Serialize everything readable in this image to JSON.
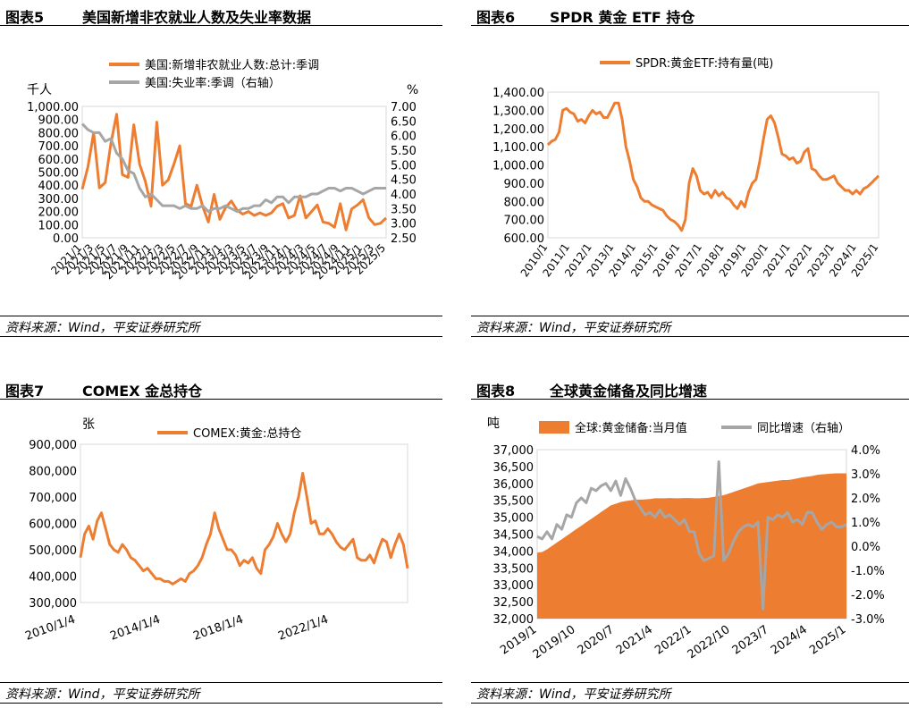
{
  "panels": [
    {
      "number": "图表5",
      "title": "美国新增非农就业人数及失业率数据",
      "source": "资料来源：Wind，平安证券研究所"
    },
    {
      "number": "图表6",
      "title": "SPDR 黄金 ETF 持仓",
      "source": "资料来源：Wind，平安证券研究所"
    },
    {
      "number": "图表7",
      "title": "COMEX 金总持仓",
      "source": "资料来源：Wind，平安证券研究所"
    },
    {
      "number": "图表8",
      "title": "全球黄金储备及同比增速",
      "source": "资料来源：Wind，平安证券研究所"
    }
  ],
  "chart_data": [
    {
      "type": "line",
      "colors": {
        "primary": "#ed7d31",
        "secondary": "#a6a6a6"
      },
      "y_unit": "千人",
      "y2_unit": "%",
      "ylim": [
        0,
        1000
      ],
      "y2lim": [
        2.5,
        7.0
      ],
      "y_ticks": [
        "0.00",
        "100.00",
        "200.00",
        "300.00",
        "400.00",
        "500.00",
        "600.00",
        "700.00",
        "800.00",
        "900.00",
        "1,000.00"
      ],
      "y2_ticks": [
        "2.50",
        "3.00",
        "3.50",
        "4.00",
        "4.50",
        "5.00",
        "5.50",
        "6.00",
        "6.50",
        "7.00"
      ],
      "x_ticks": [
        "2021/1",
        "2021/3",
        "2021/5",
        "2021/7",
        "2021/9",
        "2021/11",
        "2022/1",
        "2022/3",
        "2022/5",
        "2022/7",
        "2022/9",
        "2022/11",
        "2023/1",
        "2023/3",
        "2023/5",
        "2023/7",
        "2023/9",
        "2023/11",
        "2024/1",
        "2024/3",
        "2024/5",
        "2024/7",
        "2024/9",
        "2024/11",
        "2025/1",
        "2025/3",
        "2025/5"
      ],
      "legend": "top",
      "series": [
        {
          "name": "美国:新增非农就业人数:总计:季调",
          "axis": "left",
          "values": [
            370,
            540,
            800,
            380,
            420,
            720,
            940,
            480,
            460,
            860,
            560,
            430,
            240,
            880,
            400,
            440,
            560,
            700,
            260,
            240,
            400,
            240,
            120,
            330,
            140,
            230,
            280,
            210,
            180,
            200,
            170,
            190,
            170,
            190,
            240,
            260,
            150,
            170,
            320,
            150,
            200,
            250,
            120,
            110,
            80,
            260,
            60,
            220,
            250,
            290,
            150,
            100,
            110,
            150
          ]
        },
        {
          "name": "美国:失业率:季调（右轴）",
          "axis": "right",
          "values": [
            6.4,
            6.2,
            6.1,
            6.1,
            5.8,
            5.9,
            5.4,
            5.2,
            4.8,
            4.7,
            4.2,
            3.9,
            4.0,
            3.8,
            3.6,
            3.6,
            3.6,
            3.5,
            3.6,
            3.5,
            3.5,
            3.6,
            3.4,
            3.5,
            3.5,
            3.6,
            3.5,
            3.4,
            3.5,
            3.5,
            3.6,
            3.6,
            3.8,
            3.7,
            3.9,
            3.9,
            3.7,
            3.9,
            3.9,
            3.9,
            4.0,
            4.0,
            4.1,
            4.2,
            4.2,
            4.1,
            4.2,
            4.2,
            4.1,
            4.0,
            4.1,
            4.2,
            4.2,
            4.2
          ]
        }
      ]
    },
    {
      "type": "line",
      "colors": {
        "primary": "#ed7d31"
      },
      "ylim": [
        600,
        1400
      ],
      "y_ticks": [
        "600.00",
        "700.00",
        "800.00",
        "900.00",
        "1,000.00",
        "1,100.00",
        "1,200.00",
        "1,300.00",
        "1,400.00"
      ],
      "x_ticks": [
        "2010/1",
        "2011/1",
        "2012/1",
        "2013/1",
        "2014/1",
        "2015/1",
        "2016/1",
        "2017/1",
        "2018/1",
        "2019/1",
        "2020/1",
        "2021/1",
        "2022/1",
        "2023/1",
        "2024/1",
        "2025/1"
      ],
      "legend": "top",
      "series": [
        {
          "name": "SPDR:黄金ETF:持有量(吨)",
          "values": [
            1110,
            1130,
            1140,
            1180,
            1300,
            1310,
            1290,
            1280,
            1240,
            1250,
            1230,
            1270,
            1300,
            1280,
            1290,
            1260,
            1260,
            1300,
            1340,
            1340,
            1250,
            1100,
            1020,
            920,
            880,
            820,
            800,
            800,
            780,
            770,
            760,
            750,
            720,
            700,
            690,
            670,
            640,
            700,
            900,
            980,
            940,
            860,
            840,
            850,
            820,
            860,
            830,
            850,
            820,
            810,
            780,
            760,
            800,
            770,
            850,
            900,
            920,
            1020,
            1140,
            1250,
            1270,
            1230,
            1150,
            1060,
            1050,
            1030,
            1040,
            1010,
            1020,
            1070,
            1090,
            980,
            970,
            940,
            920,
            920,
            930,
            940,
            900,
            880,
            860,
            860,
            840,
            860,
            840,
            870,
            880,
            900,
            920,
            940
          ]
        }
      ]
    },
    {
      "type": "line",
      "colors": {
        "primary": "#ed7d31"
      },
      "y_unit": "张",
      "ylim": [
        300000,
        900000
      ],
      "y_ticks": [
        "300,000",
        "400,000",
        "500,000",
        "600,000",
        "700,000",
        "800,000",
        "900,000"
      ],
      "x_ticks": [
        "2010/1/4",
        "2014/1/4",
        "2018/1/4",
        "2022/1/4"
      ],
      "legend": "top",
      "series": [
        {
          "name": "COMEX:黄金:总持仓",
          "values": [
            470,
            560,
            590,
            540,
            610,
            640,
            580,
            520,
            500,
            490,
            520,
            500,
            470,
            460,
            440,
            420,
            430,
            410,
            390,
            390,
            380,
            380,
            370,
            380,
            390,
            380,
            410,
            420,
            440,
            470,
            520,
            560,
            640,
            580,
            540,
            500,
            500,
            480,
            440,
            460,
            450,
            470,
            430,
            410,
            500,
            520,
            550,
            600,
            560,
            530,
            560,
            640,
            700,
            790,
            700,
            600,
            610,
            560,
            560,
            580,
            560,
            530,
            510,
            500,
            520,
            540,
            470,
            460,
            460,
            480,
            450,
            500,
            540,
            530,
            470,
            520,
            560,
            520,
            430
          ]
        }
      ]
    },
    {
      "type": "area",
      "colors": {
        "primary": "#ed7d31",
        "secondary": "#a6a6a6"
      },
      "y_unit": "吨",
      "ylim": [
        32000,
        37000
      ],
      "y2lim": [
        -3.0,
        4.0
      ],
      "y_ticks": [
        "32,000",
        "32,500",
        "33,000",
        "33,500",
        "34,000",
        "34,500",
        "35,000",
        "35,500",
        "36,000",
        "36,500",
        "37,000"
      ],
      "y2_ticks": [
        "-3.0%",
        "-2.0%",
        "-1.0%",
        "0.0%",
        "1.0%",
        "2.0%",
        "3.0%",
        "4.0%"
      ],
      "x_ticks": [
        "2019/1",
        "2019/10",
        "2020/7",
        "2021/4",
        "2022/1",
        "2022/10",
        "2023/7",
        "2024/4",
        "2025/1"
      ],
      "legend": "top",
      "series": [
        {
          "name": "全球:黄金储备:当月值",
          "axis": "left",
          "values": [
            33950,
            33970,
            34050,
            34150,
            34250,
            34350,
            34450,
            34550,
            34650,
            34750,
            34850,
            34950,
            35050,
            35150,
            35250,
            35350,
            35400,
            35450,
            35480,
            35500,
            35520,
            35520,
            35530,
            35540,
            35560,
            35560,
            35560,
            35570,
            35560,
            35560,
            35570,
            35570,
            35560,
            35560,
            35570,
            35580,
            35600,
            35630,
            35650,
            35700,
            35750,
            35800,
            35850,
            35900,
            35950,
            36000,
            36020,
            36040,
            36060,
            36080,
            36100,
            36100,
            36120,
            36150,
            36180,
            36200,
            36220,
            36250,
            36270,
            36280,
            36290,
            36300,
            36300,
            36300
          ]
        },
        {
          "name": "同比增速（右轴）",
          "axis": "right",
          "values": [
            0.4,
            0.3,
            0.6,
            0.3,
            0.9,
            0.7,
            1.3,
            1.2,
            1.8,
            2.0,
            1.8,
            2.4,
            2.3,
            2.5,
            2.6,
            2.3,
            2.7,
            2.1,
            2.8,
            2.4,
            1.9,
            1.6,
            1.3,
            1.4,
            1.2,
            1.5,
            1.2,
            1.3,
            1.1,
            0.9,
            1.1,
            0.6,
            0.6,
            -0.3,
            -0.6,
            -0.5,
            -0.4,
            3.5,
            -0.6,
            -0.3,
            0.2,
            0.6,
            0.8,
            0.9,
            0.8,
            1.0,
            -2.6,
            1.2,
            1.1,
            1.3,
            1.2,
            1.4,
            1.0,
            1.1,
            0.9,
            1.4,
            1.4,
            1.0,
            0.7,
            0.9,
            1.0,
            0.8,
            0.8,
            0.9
          ]
        }
      ]
    }
  ]
}
